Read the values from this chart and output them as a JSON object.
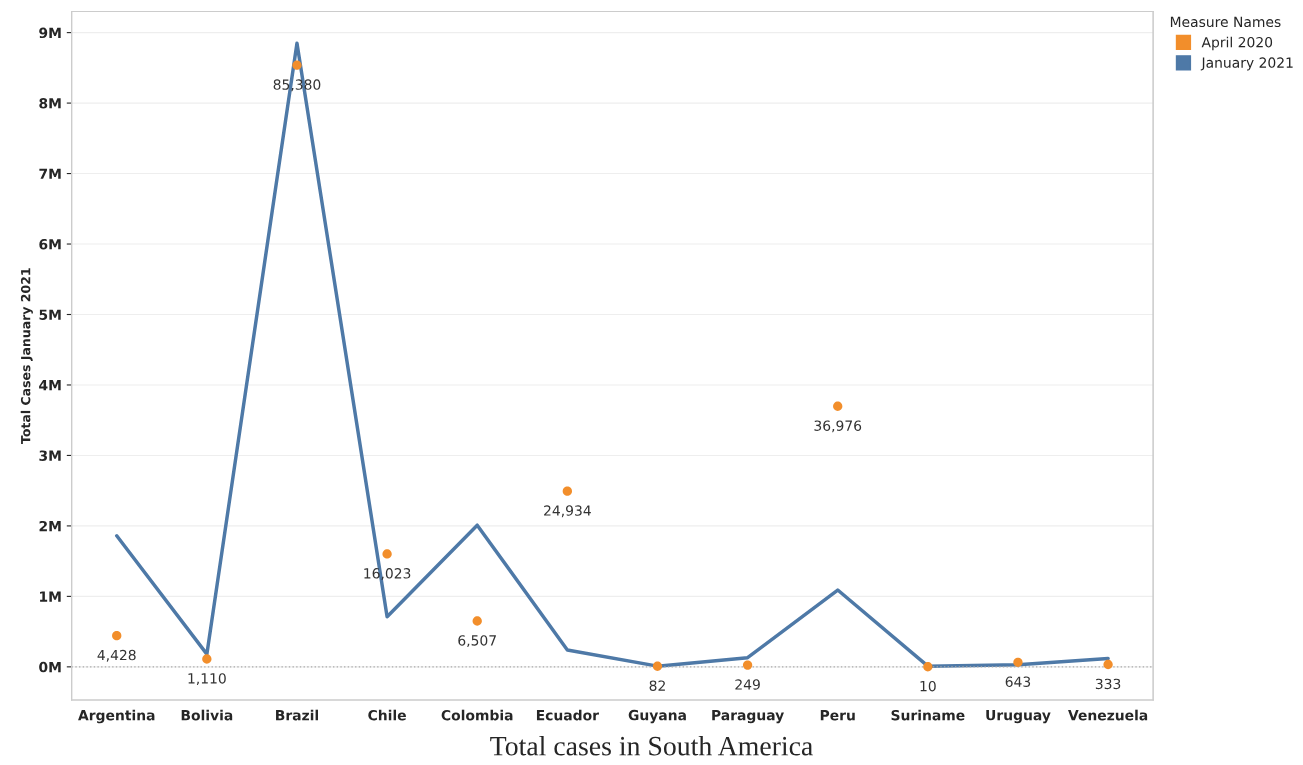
{
  "chart_data": {
    "type": "line",
    "title": "Total cases in South America",
    "ylabel": "Total Cases January 2021",
    "legend_title": "Measure Names",
    "categories": [
      "Argentina",
      "Bolivia",
      "Brazil",
      "Chile",
      "Colombia",
      "Ecuador",
      "Guyana",
      "Paraguay",
      "Peru",
      "Suriname",
      "Uruguay",
      "Venezuela"
    ],
    "series": [
      {
        "name": "April 2020",
        "type": "scatter",
        "marker": "circle",
        "axis": "y2",
        "color": "#f28e2b",
        "values": [
          4428,
          1110,
          85380,
          16023,
          6507,
          24934,
          82,
          249,
          36976,
          10,
          643,
          333
        ],
        "value_labels": [
          "4,428",
          "1,110",
          "85,380",
          "16,023",
          "6,507",
          "24,934",
          "82",
          "249",
          "36,976",
          "10",
          "643",
          "333"
        ]
      },
      {
        "name": "January 2021",
        "color": "#4e79a7",
        "values": [
          1.86,
          0.18,
          8.85,
          0.71,
          2.01,
          0.24,
          0.01,
          0.13,
          1.09,
          0.01,
          0.03,
          0.12
        ]
      }
    ],
    "ylim": [
      -0.47,
      9.3
    ],
    "yticks": [
      {
        "value": 0,
        "label": "0M"
      },
      {
        "value": 1,
        "label": "1M"
      },
      {
        "value": 2,
        "label": "2M"
      },
      {
        "value": 3,
        "label": "3M"
      },
      {
        "value": 4,
        "label": "4M"
      },
      {
        "value": 5,
        "label": "5M"
      },
      {
        "value": 6,
        "label": "6M"
      },
      {
        "value": 7,
        "label": "7M"
      },
      {
        "value": 8,
        "label": "8M"
      },
      {
        "value": 9,
        "label": "9M"
      }
    ],
    "y2lim": [
      -4700,
      93000
    ],
    "tick_labels": [
      "x",
      "y"
    ],
    "ref_lines": [
      {
        "axis": "y",
        "value": 0,
        "line_style": "dotted",
        "color": "#aaaaaa"
      }
    ],
    "grid": "y",
    "legend": "top right"
  }
}
